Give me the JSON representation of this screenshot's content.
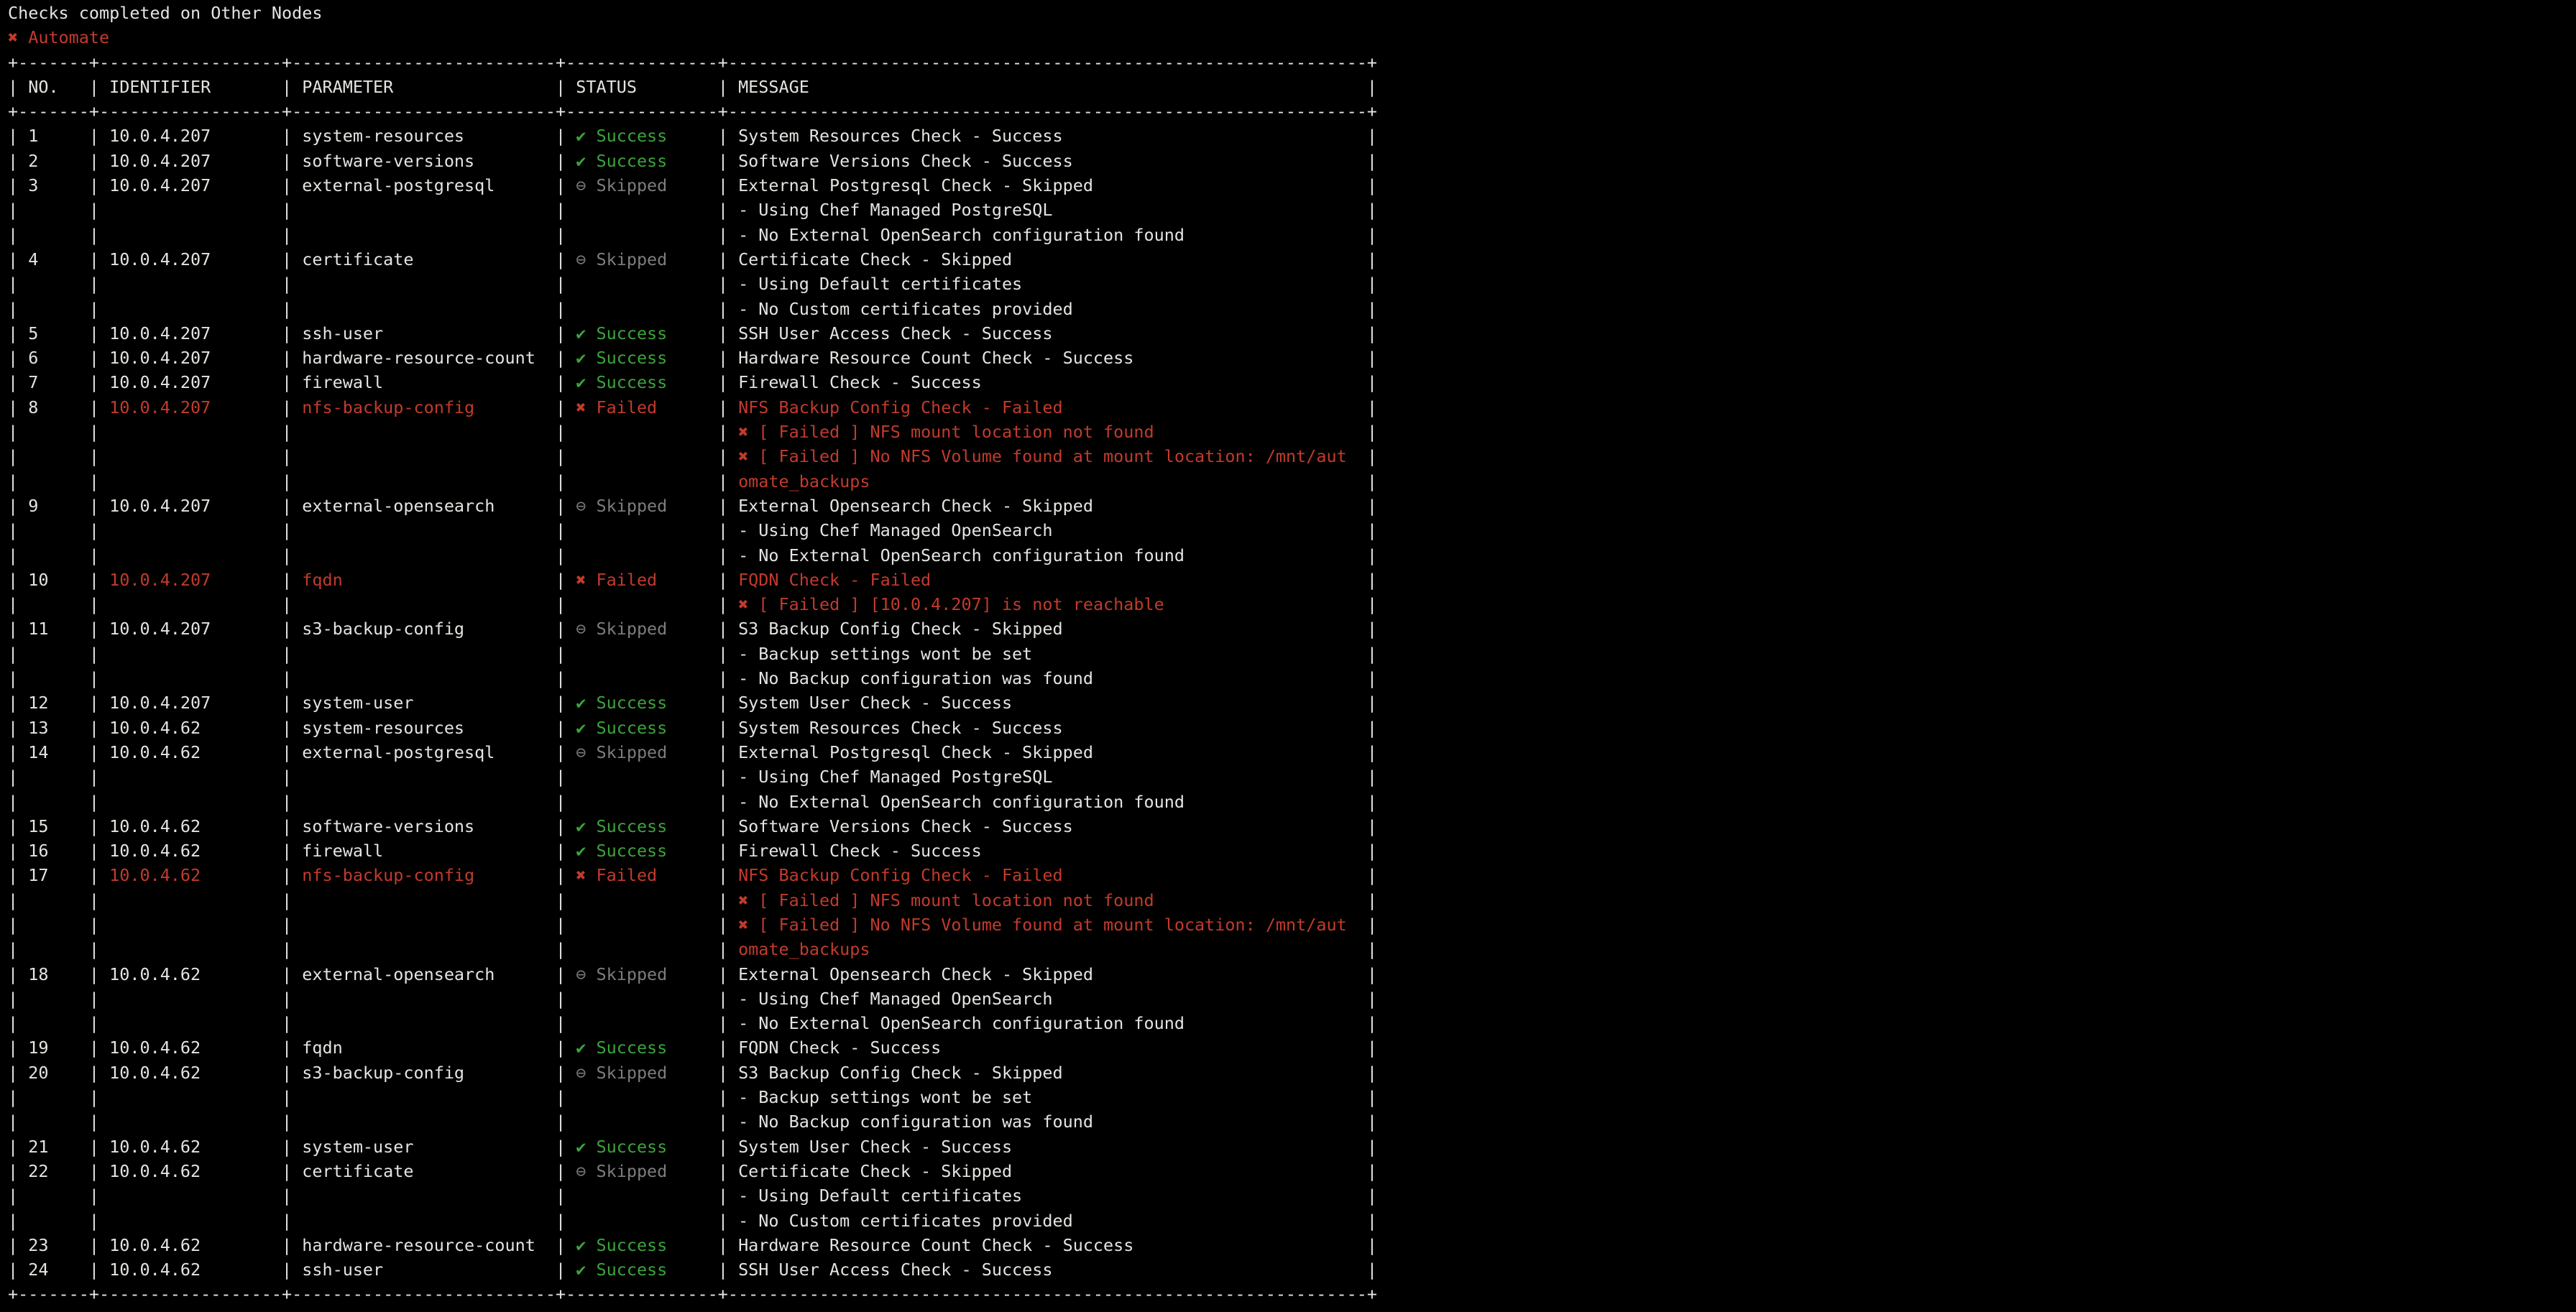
{
  "terminal": {
    "title": "Checks completed on Other Nodes",
    "product": {
      "icon": "✖",
      "label": "Automate",
      "status": "failed"
    },
    "colors": {
      "background": "#000000",
      "foreground": "#e4e4e1",
      "success": "#3ba43b",
      "failed": "#c23b2c",
      "skipped": "#7d7d7d"
    },
    "table": {
      "columns": [
        "NO.",
        "IDENTIFIER",
        "PARAMETER",
        "STATUS",
        "MESSAGE"
      ],
      "status_icons": {
        "success": "✔",
        "failed": "✖",
        "skipped": "⊖"
      },
      "status_labels": {
        "success": "Success",
        "failed": "Failed",
        "skipped": "Skipped"
      },
      "rows": [
        {
          "no": "1",
          "identifier": "10.0.4.207",
          "parameter": "system-resources",
          "status": "success",
          "messages": [
            "System Resources Check - Success"
          ]
        },
        {
          "no": "2",
          "identifier": "10.0.4.207",
          "parameter": "software-versions",
          "status": "success",
          "messages": [
            "Software Versions Check - Success"
          ]
        },
        {
          "no": "3",
          "identifier": "10.0.4.207",
          "parameter": "external-postgresql",
          "status": "skipped",
          "messages": [
            "External Postgresql Check - Skipped",
            "- Using Chef Managed PostgreSQL",
            "- No External OpenSearch configuration found"
          ]
        },
        {
          "no": "4",
          "identifier": "10.0.4.207",
          "parameter": "certificate",
          "status": "skipped",
          "messages": [
            "Certificate Check - Skipped",
            "- Using Default certificates",
            "- No Custom certificates provided"
          ]
        },
        {
          "no": "5",
          "identifier": "10.0.4.207",
          "parameter": "ssh-user",
          "status": "success",
          "messages": [
            "SSH User Access Check - Success"
          ]
        },
        {
          "no": "6",
          "identifier": "10.0.4.207",
          "parameter": "hardware-resource-count",
          "status": "success",
          "messages": [
            "Hardware Resource Count Check - Success"
          ]
        },
        {
          "no": "7",
          "identifier": "10.0.4.207",
          "parameter": "firewall",
          "status": "success",
          "messages": [
            "Firewall Check - Success"
          ]
        },
        {
          "no": "8",
          "identifier": "10.0.4.207",
          "parameter": "nfs-backup-config",
          "status": "failed",
          "messages": [
            "NFS Backup Config Check - Failed",
            "✖ [ Failed ] NFS mount location not found",
            "✖ [ Failed ] No NFS Volume found at mount location: /mnt/aut",
            "omate_backups"
          ]
        },
        {
          "no": "9",
          "identifier": "10.0.4.207",
          "parameter": "external-opensearch",
          "status": "skipped",
          "messages": [
            "External Opensearch Check - Skipped",
            "- Using Chef Managed OpenSearch",
            "- No External OpenSearch configuration found"
          ]
        },
        {
          "no": "10",
          "identifier": "10.0.4.207",
          "parameter": "fqdn",
          "status": "failed",
          "messages": [
            "FQDN Check - Failed",
            "✖ [ Failed ] [10.0.4.207] is not reachable"
          ]
        },
        {
          "no": "11",
          "identifier": "10.0.4.207",
          "parameter": "s3-backup-config",
          "status": "skipped",
          "messages": [
            "S3 Backup Config Check - Skipped",
            "- Backup settings wont be set",
            "- No Backup configuration was found"
          ]
        },
        {
          "no": "12",
          "identifier": "10.0.4.207",
          "parameter": "system-user",
          "status": "success",
          "messages": [
            "System User Check - Success"
          ]
        },
        {
          "no": "13",
          "identifier": "10.0.4.62",
          "parameter": "system-resources",
          "status": "success",
          "messages": [
            "System Resources Check - Success"
          ]
        },
        {
          "no": "14",
          "identifier": "10.0.4.62",
          "parameter": "external-postgresql",
          "status": "skipped",
          "messages": [
            "External Postgresql Check - Skipped",
            "- Using Chef Managed PostgreSQL",
            "- No External OpenSearch configuration found"
          ]
        },
        {
          "no": "15",
          "identifier": "10.0.4.62",
          "parameter": "software-versions",
          "status": "success",
          "messages": [
            "Software Versions Check - Success"
          ]
        },
        {
          "no": "16",
          "identifier": "10.0.4.62",
          "parameter": "firewall",
          "status": "success",
          "messages": [
            "Firewall Check - Success"
          ]
        },
        {
          "no": "17",
          "identifier": "10.0.4.62",
          "parameter": "nfs-backup-config",
          "status": "failed",
          "messages": [
            "NFS Backup Config Check - Failed",
            "✖ [ Failed ] NFS mount location not found",
            "✖ [ Failed ] No NFS Volume found at mount location: /mnt/aut",
            "omate_backups"
          ]
        },
        {
          "no": "18",
          "identifier": "10.0.4.62",
          "parameter": "external-opensearch",
          "status": "skipped",
          "messages": [
            "External Opensearch Check - Skipped",
            "- Using Chef Managed OpenSearch",
            "- No External OpenSearch configuration found"
          ]
        },
        {
          "no": "19",
          "identifier": "10.0.4.62",
          "parameter": "fqdn",
          "status": "success",
          "messages": [
            "FQDN Check - Success"
          ]
        },
        {
          "no": "20",
          "identifier": "10.0.4.62",
          "parameter": "s3-backup-config",
          "status": "skipped",
          "messages": [
            "S3 Backup Config Check - Skipped",
            "- Backup settings wont be set",
            "- No Backup configuration was found"
          ]
        },
        {
          "no": "21",
          "identifier": "10.0.4.62",
          "parameter": "system-user",
          "status": "success",
          "messages": [
            "System User Check - Success"
          ]
        },
        {
          "no": "22",
          "identifier": "10.0.4.62",
          "parameter": "certificate",
          "status": "skipped",
          "messages": [
            "Certificate Check - Skipped",
            "- Using Default certificates",
            "- No Custom certificates provided"
          ]
        },
        {
          "no": "23",
          "identifier": "10.0.4.62",
          "parameter": "hardware-resource-count",
          "status": "success",
          "messages": [
            "Hardware Resource Count Check - Success"
          ]
        },
        {
          "no": "24",
          "identifier": "10.0.4.62",
          "parameter": "ssh-user",
          "status": "success",
          "messages": [
            "SSH User Access Check - Success"
          ]
        }
      ]
    }
  }
}
